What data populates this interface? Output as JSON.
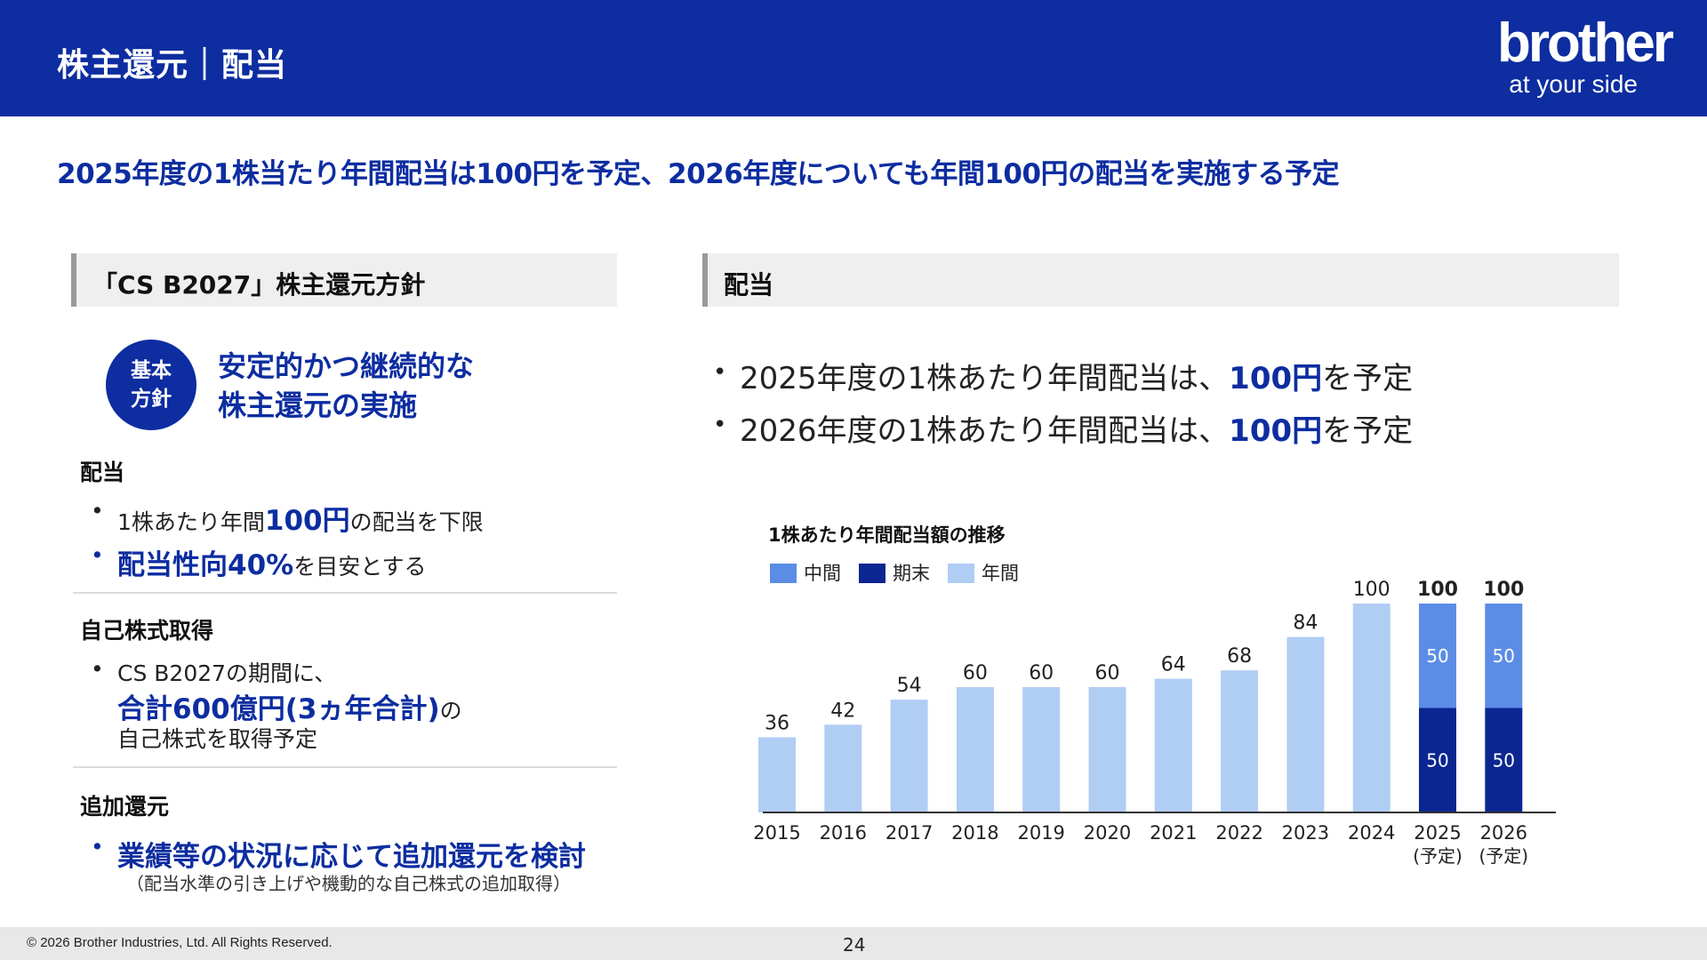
{
  "header": {
    "title": "株主還元｜配当",
    "logo_word": "brother",
    "logo_tagline": "at your side"
  },
  "headline": "2025年度の1株当たり年間配当は100円を予定、2026年度についても年間100円の配当を実施する予定",
  "left": {
    "section_title": "「CS B2027」株主還元方針",
    "badge": {
      "line1": "基本",
      "line2": "方針"
    },
    "policy": {
      "line1": "安定的かつ継続的な",
      "line2": "株主還元の実施"
    },
    "dividend": {
      "heading": "配当",
      "b1_pre": "1株あたり年間",
      "b1_em": "100円",
      "b1_post": "の配当を下限",
      "b2_em": "配当性向40%",
      "b2_post": "を目安とする"
    },
    "buyback": {
      "heading": "自己株式取得",
      "line1": "CS B2027の期間に、",
      "line2_em": "合計600億円(3ヵ年合計)",
      "line2_post": "の",
      "line3": "自己株式を取得予定"
    },
    "additional": {
      "heading": "追加還元",
      "b1": "業績等の状況に応じて追加還元を検討",
      "note": "（配当水準の引き上げや機動的な自己株式の追加取得）"
    }
  },
  "right": {
    "section_title": "配当",
    "b1_pre": "2025年度の1株あたり年間配当は、",
    "b1_em": "100円",
    "b1_post": "を予定",
    "b2_pre": "2026年度の1株あたり年間配当は、",
    "b2_em": "100円",
    "b2_post": "を予定"
  },
  "chart_data": {
    "type": "bar",
    "title": "1株あたり年間配当額の推移",
    "categories": [
      "2015",
      "2016",
      "2017",
      "2018",
      "2019",
      "2020",
      "2021",
      "2022",
      "2023",
      "2024",
      "2025",
      "2026"
    ],
    "sublabels": [
      "",
      "",
      "",
      "",
      "",
      "",
      "",
      "",
      "",
      "",
      "(予定)",
      "(予定)"
    ],
    "legend": [
      "中間",
      "期末",
      "年間"
    ],
    "colors": {
      "中間": "#5b8de6",
      "期末": "#0b2690",
      "年間": "#b0cdf4"
    },
    "series": [
      {
        "name": "年間",
        "values": [
          36,
          42,
          54,
          60,
          60,
          60,
          64,
          68,
          84,
          100,
          null,
          null
        ]
      },
      {
        "name": "期末",
        "values": [
          null,
          null,
          null,
          null,
          null,
          null,
          null,
          null,
          null,
          null,
          50,
          50
        ]
      },
      {
        "name": "中間",
        "values": [
          null,
          null,
          null,
          null,
          null,
          null,
          null,
          null,
          null,
          null,
          50,
          50
        ]
      }
    ],
    "totals": [
      36,
      42,
      54,
      60,
      60,
      60,
      64,
      68,
      84,
      100,
      100,
      100
    ],
    "ylim": [
      0,
      100
    ]
  },
  "footer": {
    "copyright": "© 2026 Brother Industries, Ltd. All Rights Reserved.",
    "page": "24"
  }
}
